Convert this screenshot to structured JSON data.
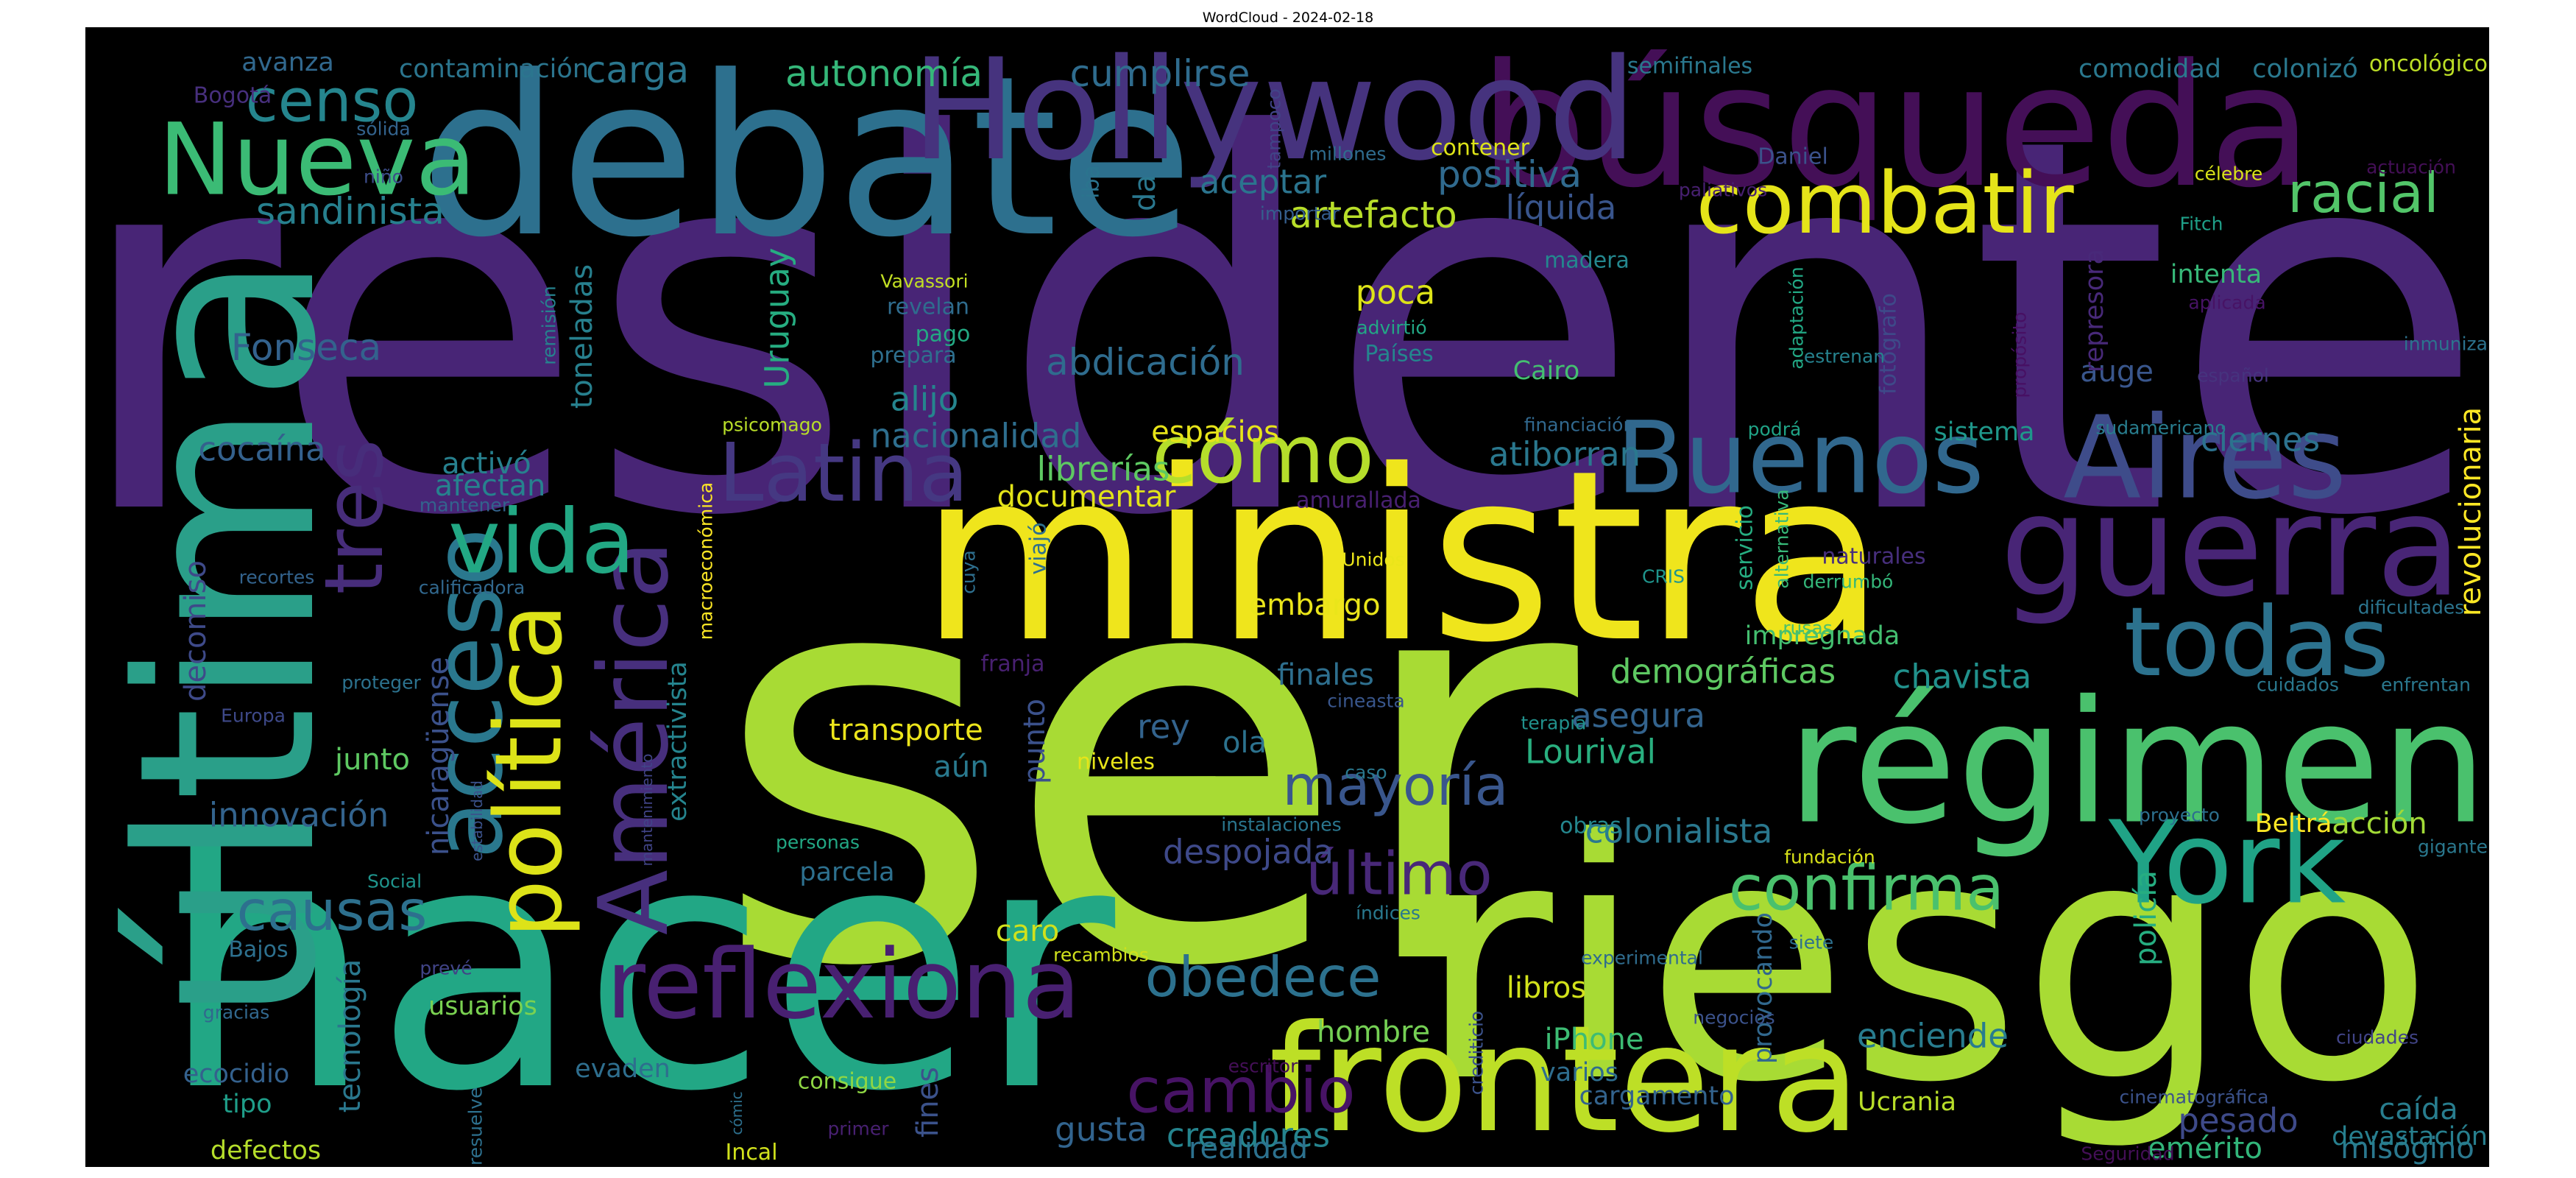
{
  "chart_data": {
    "type": "wordcloud",
    "title": "WordCloud - 2024-02-18",
    "background": "#000000",
    "colormap": "viridis",
    "words": [
      {
        "text": "expresidente",
        "color": "#482576"
      },
      {
        "text": "ser",
        "color": "#a8db34"
      },
      {
        "text": "riesgo",
        "color": "#a8db34"
      },
      {
        "text": "hacer",
        "color": "#22a785"
      },
      {
        "text": "ministra",
        "color": "#efe51c"
      },
      {
        "text": "debate",
        "color": "#2d708e"
      },
      {
        "text": "última",
        "color": "#2a9f89"
      },
      {
        "text": "régimen",
        "color": "#4ac16d"
      },
      {
        "text": "búsqueda",
        "color": "#440f57"
      },
      {
        "text": "Hollywood",
        "color": "#46337e"
      },
      {
        "text": "frontera",
        "color": "#bddf26"
      },
      {
        "text": "guerra",
        "color": "#482576"
      },
      {
        "text": "Aires",
        "color": "#3e4c8a"
      },
      {
        "text": "York",
        "color": "#20a386"
      },
      {
        "text": "América",
        "color": "#472f7d"
      },
      {
        "text": "acceso",
        "color": "#2a788e"
      },
      {
        "text": "política",
        "color": "#dde318"
      },
      {
        "text": "reflexiona",
        "color": "#482071"
      },
      {
        "text": "Buenos",
        "color": "#31688e"
      },
      {
        "text": "todas",
        "color": "#2c728e"
      },
      {
        "text": "tres",
        "color": "#472d7b"
      },
      {
        "text": "Nueva",
        "color": "#3bbb75"
      },
      {
        "text": "combatir",
        "color": "#e5e419"
      },
      {
        "text": "vida",
        "color": "#22a884"
      },
      {
        "text": "Latina",
        "color": "#453882"
      },
      {
        "text": "cómo",
        "color": "#b5de2b"
      },
      {
        "text": "confirma",
        "color": "#4ac16d"
      },
      {
        "text": "cambio",
        "color": "#471365"
      },
      {
        "text": "último",
        "color": "#482878"
      },
      {
        "text": "censo",
        "color": "#25858e"
      },
      {
        "text": "mayoría",
        "color": "#39568c"
      },
      {
        "text": "obedece",
        "color": "#2c718e"
      },
      {
        "text": "causas",
        "color": "#2d708e"
      },
      {
        "text": "racial",
        "color": "#52c569"
      },
      {
        "text": "autonomía",
        "color": "#35b779"
      },
      {
        "text": "carga",
        "color": "#2a768e"
      },
      {
        "text": "cumplirse",
        "color": "#2f6c8e"
      },
      {
        "text": "sandinista",
        "color": "#27808e"
      },
      {
        "text": "aceptar",
        "color": "#2b748e"
      },
      {
        "text": "positiva",
        "color": "#306a8e"
      },
      {
        "text": "líquida",
        "color": "#39558c"
      },
      {
        "text": "artefacto",
        "color": "#b8de29"
      },
      {
        "text": "Fonseca",
        "color": "#33628d"
      },
      {
        "text": "abdicación",
        "color": "#2f6c8e"
      },
      {
        "text": "Uruguay",
        "color": "#26ad81"
      },
      {
        "text": "toneladas",
        "color": "#27808e"
      },
      {
        "text": "alijo",
        "color": "#25858e"
      },
      {
        "text": "poca",
        "color": "#dde318"
      },
      {
        "text": "nacionalidad",
        "color": "#2e6e8e"
      },
      {
        "text": "espacios",
        "color": "#e7e419"
      },
      {
        "text": "atiborran",
        "color": "#2a788e"
      },
      {
        "text": "librerías",
        "color": "#5ec962"
      },
      {
        "text": "documentar",
        "color": "#e2e418"
      },
      {
        "text": "cocaína",
        "color": "#34618d"
      },
      {
        "text": "activó",
        "color": "#27808e"
      },
      {
        "text": "afectan",
        "color": "#26828e"
      },
      {
        "text": "ciernes",
        "color": "#2c728e"
      },
      {
        "text": "revolucionaria",
        "color": "#fde725"
      },
      {
        "text": "sistema",
        "color": "#1f988b"
      },
      {
        "text": "auge",
        "color": "#39568c"
      },
      {
        "text": "intenta",
        "color": "#37b878"
      },
      {
        "text": "demográficas",
        "color": "#5ec962"
      },
      {
        "text": "chavista",
        "color": "#21918c"
      },
      {
        "text": "asegura",
        "color": "#33638d"
      },
      {
        "text": "Lourival",
        "color": "#29af7f"
      },
      {
        "text": "embargo",
        "color": "#eae51a"
      },
      {
        "text": "finales",
        "color": "#2e6f8e"
      },
      {
        "text": "ola",
        "color": "#2c728e"
      },
      {
        "text": "rey",
        "color": "#33638d"
      },
      {
        "text": "aún",
        "color": "#29798e"
      },
      {
        "text": "punto",
        "color": "#3b518b"
      },
      {
        "text": "transporte",
        "color": "#ece51b"
      },
      {
        "text": "niveles",
        "color": "#e7e419"
      },
      {
        "text": "despojada",
        "color": "#3e4989"
      },
      {
        "text": "colonialista",
        "color": "#2a788e"
      },
      {
        "text": "impregnada",
        "color": "#44bf70"
      },
      {
        "text": "innovación",
        "color": "#33638d"
      },
      {
        "text": "junto",
        "color": "#5ec962"
      },
      {
        "text": "nicaragüense",
        "color": "#3b518b"
      },
      {
        "text": "extractivista",
        "color": "#25848e"
      },
      {
        "text": "decomiso",
        "color": "#3e4a89"
      },
      {
        "text": "parcela",
        "color": "#2d708e"
      },
      {
        "text": "caro",
        "color": "#d0e11c"
      },
      {
        "text": "tecnología",
        "color": "#2a788e"
      },
      {
        "text": "usuarios",
        "color": "#7ad151"
      },
      {
        "text": "hombre",
        "color": "#75d054"
      },
      {
        "text": "libros",
        "color": "#d2e21b"
      },
      {
        "text": "iPhone",
        "color": "#3dbc74"
      },
      {
        "text": "enciende",
        "color": "#287c8e"
      },
      {
        "text": "policía",
        "color": "#26ad81"
      },
      {
        "text": "acción",
        "color": "#a2da37"
      },
      {
        "text": "Beltrá",
        "color": "#fde725"
      },
      {
        "text": "Ucrania",
        "color": "#b8de29"
      },
      {
        "text": "pesado",
        "color": "#3e4a89"
      },
      {
        "text": "caída",
        "color": "#287d8e"
      },
      {
        "text": "creadores",
        "color": "#25848e"
      },
      {
        "text": "realidad",
        "color": "#2c718e"
      },
      {
        "text": "gusta",
        "color": "#32648e"
      },
      {
        "text": "fines",
        "color": "#3b528b"
      },
      {
        "text": "cargamento",
        "color": "#33638d"
      },
      {
        "text": "varios",
        "color": "#2e6d8e"
      },
      {
        "text": "misógino",
        "color": "#2a788e"
      },
      {
        "text": "emérito",
        "color": "#32b67a"
      },
      {
        "text": "devastación",
        "color": "#277f8e"
      },
      {
        "text": "defectos",
        "color": "#b5de2b"
      },
      {
        "text": "tipo",
        "color": "#1f9e89"
      },
      {
        "text": "ecocidio",
        "color": "#34618d"
      },
      {
        "text": "evaden",
        "color": "#2e6e8e"
      },
      {
        "text": "consigue",
        "color": "#8fd744"
      },
      {
        "text": "Incal",
        "color": "#d0e11c"
      },
      {
        "text": "provocando",
        "color": "#31688e"
      },
      {
        "text": "avanza",
        "color": "#31688e"
      },
      {
        "text": "contaminación",
        "color": "#2b758e"
      },
      {
        "text": "comodidad",
        "color": "#2a788e"
      },
      {
        "text": "colonizó",
        "color": "#2a788e"
      },
      {
        "text": "oncológico",
        "color": "#bddf26"
      },
      {
        "text": "semifinales",
        "color": "#2a788e"
      },
      {
        "text": "Bogotá",
        "color": "#472f7d"
      },
      {
        "text": "sólida",
        "color": "#33638d"
      },
      {
        "text": "tampoco",
        "color": "#414487"
      },
      {
        "text": "millones",
        "color": "#2f6c8e"
      },
      {
        "text": "contener",
        "color": "#dde318"
      },
      {
        "text": "paliativos",
        "color": "#482071"
      },
      {
        "text": "Daniel",
        "color": "#3b528b"
      },
      {
        "text": "da",
        "color": "#2a778e"
      },
      {
        "text": "niño",
        "color": "#3d4d8a"
      },
      {
        "text": "iba",
        "color": "#2b748e"
      },
      {
        "text": "importar",
        "color": "#355f8d"
      },
      {
        "text": "madera",
        "color": "#24878e"
      },
      {
        "text": "célebre",
        "color": "#d8e219"
      },
      {
        "text": "actuación",
        "color": "#440f57"
      },
      {
        "text": "Fitch",
        "color": "#1f9f88"
      },
      {
        "text": "Vavassori",
        "color": "#c2df23"
      },
      {
        "text": "revelan",
        "color": "#2f6c8e"
      },
      {
        "text": "pago",
        "color": "#23a983"
      },
      {
        "text": "prepara",
        "color": "#2e6f8e"
      },
      {
        "text": "advirtió",
        "color": "#22a785"
      },
      {
        "text": "Países",
        "color": "#24868e"
      },
      {
        "text": "Cairo",
        "color": "#44bf70"
      },
      {
        "text": "adaptación",
        "color": "#22a884"
      },
      {
        "text": "fotógrafo",
        "color": "#3e4a89"
      },
      {
        "text": "propósito",
        "color": "#471063"
      },
      {
        "text": "represora",
        "color": "#482979"
      },
      {
        "text": "remisión",
        "color": "#26828e"
      },
      {
        "text": "estrenan",
        "color": "#26828e"
      },
      {
        "text": "aplicada",
        "color": "#471365"
      },
      {
        "text": "inmuniza",
        "color": "#2c738e"
      },
      {
        "text": "español",
        "color": "#46337e"
      },
      {
        "text": "financiación",
        "color": "#31688e"
      },
      {
        "text": "podrá",
        "color": "#20a386"
      },
      {
        "text": "psicomago",
        "color": "#b8de29"
      },
      {
        "text": "sudamericano",
        "color": "#287d8e"
      },
      {
        "text": "mantener",
        "color": "#33638d"
      },
      {
        "text": "amurallada",
        "color": "#482071"
      },
      {
        "text": "recortes",
        "color": "#33638d"
      },
      {
        "text": "calificadora",
        "color": "#31688e"
      },
      {
        "text": "macroeconómica",
        "color": "#fde725"
      },
      {
        "text": "cuya",
        "color": "#2e6f8e"
      },
      {
        "text": "viajó",
        "color": "#2d708e"
      },
      {
        "text": "Unidos",
        "color": "#eae51a"
      },
      {
        "text": "CRIS",
        "color": "#1f948c"
      },
      {
        "text": "servicio",
        "color": "#26ad81"
      },
      {
        "text": "alternativa",
        "color": "#37b878"
      },
      {
        "text": "derrumbó",
        "color": "#34b679"
      },
      {
        "text": "naturales",
        "color": "#472f7d"
      },
      {
        "text": "dificultades",
        "color": "#2b748e"
      },
      {
        "text": "rusas",
        "color": "#4ac16d"
      },
      {
        "text": "franja",
        "color": "#482071"
      },
      {
        "text": "proteger",
        "color": "#2c728e"
      },
      {
        "text": "cuidados",
        "color": "#2a788e"
      },
      {
        "text": "enfrentan",
        "color": "#2a788e"
      },
      {
        "text": "Europa",
        "color": "#3e4989"
      },
      {
        "text": "cineasta",
        "color": "#39568c"
      },
      {
        "text": "terapia",
        "color": "#21918c"
      },
      {
        "text": "estabilidad",
        "color": "#3b528b"
      },
      {
        "text": "mantenimiento",
        "color": "#414487"
      },
      {
        "text": "caso",
        "color": "#2a788e"
      },
      {
        "text": "personas",
        "color": "#22a884"
      },
      {
        "text": "instalaciones",
        "color": "#2a768e"
      },
      {
        "text": "proyecto",
        "color": "#2d708e"
      },
      {
        "text": "fundación",
        "color": "#d8e219"
      },
      {
        "text": "gigante",
        "color": "#2a788e"
      },
      {
        "text": "Social",
        "color": "#1f948c"
      },
      {
        "text": "índices",
        "color": "#29798e"
      },
      {
        "text": "Bajos",
        "color": "#2d708e"
      },
      {
        "text": "prevé",
        "color": "#414487"
      },
      {
        "text": "recambios",
        "color": "#d0e11c"
      },
      {
        "text": "experimental",
        "color": "#2f6c8e"
      },
      {
        "text": "siete",
        "color": "#2d708e"
      },
      {
        "text": "gracias",
        "color": "#31688e"
      },
      {
        "text": "crediticio",
        "color": "#3b528b"
      },
      {
        "text": "negocios",
        "color": "#3b528b"
      },
      {
        "text": "escritor",
        "color": "#440f57"
      },
      {
        "text": "ciudades",
        "color": "#414487"
      },
      {
        "text": "resuelve",
        "color": "#2d708e"
      },
      {
        "text": "cómic",
        "color": "#2d708e"
      },
      {
        "text": "primer",
        "color": "#482071"
      },
      {
        "text": "cinematográfica",
        "color": "#3b528b"
      },
      {
        "text": "Seguridad",
        "color": "#440f57"
      },
      {
        "text": "obras",
        "color": "#24878e"
      }
    ]
  }
}
